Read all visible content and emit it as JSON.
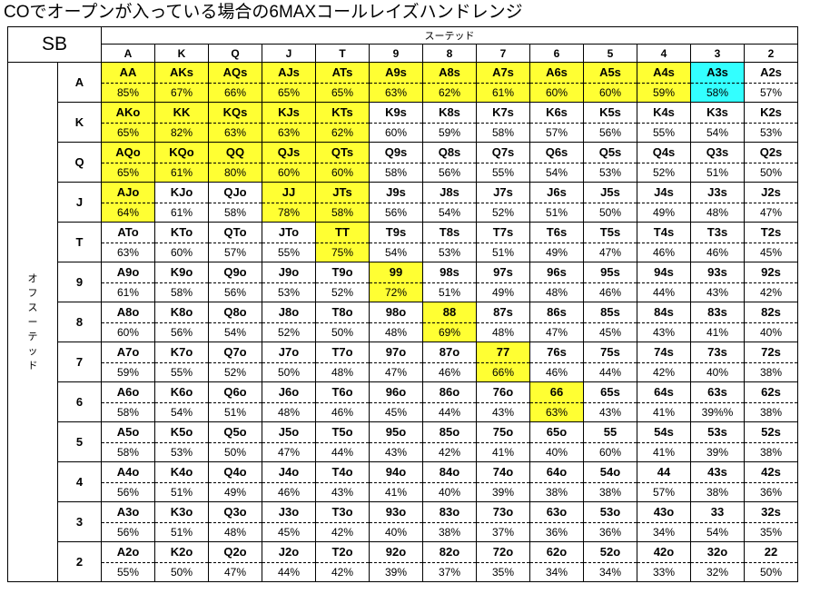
{
  "title": "COでオープンが入っている場合の6MAXコールレイズハンドレンジ",
  "position": "SB",
  "suited_label": "スーテッド",
  "offsuit_label": [
    "オ",
    "フ",
    "ス",
    "ー",
    "テ",
    "ッ",
    "ド"
  ],
  "ranks": [
    "A",
    "K",
    "Q",
    "J",
    "T",
    "9",
    "8",
    "7",
    "6",
    "5",
    "4",
    "3",
    "2"
  ],
  "colors": {
    "highlight": "#ffff33",
    "highlight_alt": "#33ffff"
  },
  "rows": [
    {
      "rank": "A",
      "cells": [
        {
          "hand": "AA",
          "pct": "85%",
          "hl": "yellow"
        },
        {
          "hand": "AKs",
          "pct": "67%",
          "hl": "yellow"
        },
        {
          "hand": "AQs",
          "pct": "66%",
          "hl": "yellow"
        },
        {
          "hand": "AJs",
          "pct": "65%",
          "hl": "yellow"
        },
        {
          "hand": "ATs",
          "pct": "65%",
          "hl": "yellow"
        },
        {
          "hand": "A9s",
          "pct": "63%",
          "hl": "yellow"
        },
        {
          "hand": "A8s",
          "pct": "62%",
          "hl": "yellow"
        },
        {
          "hand": "A7s",
          "pct": "61%",
          "hl": "yellow"
        },
        {
          "hand": "A6s",
          "pct": "60%",
          "hl": "yellow"
        },
        {
          "hand": "A5s",
          "pct": "60%",
          "hl": "yellow"
        },
        {
          "hand": "A4s",
          "pct": "59%",
          "hl": "yellow"
        },
        {
          "hand": "A3s",
          "pct": "58%",
          "hl": "cyan"
        },
        {
          "hand": "A2s",
          "pct": "57%",
          "hl": ""
        }
      ]
    },
    {
      "rank": "K",
      "cells": [
        {
          "hand": "AKo",
          "pct": "65%",
          "hl": "yellow"
        },
        {
          "hand": "KK",
          "pct": "82%",
          "hl": "yellow"
        },
        {
          "hand": "KQs",
          "pct": "63%",
          "hl": "yellow"
        },
        {
          "hand": "KJs",
          "pct": "63%",
          "hl": "yellow"
        },
        {
          "hand": "KTs",
          "pct": "62%",
          "hl": "yellow"
        },
        {
          "hand": "K9s",
          "pct": "60%",
          "hl": ""
        },
        {
          "hand": "K8s",
          "pct": "59%",
          "hl": ""
        },
        {
          "hand": "K7s",
          "pct": "58%",
          "hl": ""
        },
        {
          "hand": "K6s",
          "pct": "57%",
          "hl": ""
        },
        {
          "hand": "K5s",
          "pct": "56%",
          "hl": ""
        },
        {
          "hand": "K4s",
          "pct": "55%",
          "hl": ""
        },
        {
          "hand": "K3s",
          "pct": "54%",
          "hl": ""
        },
        {
          "hand": "K2s",
          "pct": "53%",
          "hl": ""
        }
      ]
    },
    {
      "rank": "Q",
      "cells": [
        {
          "hand": "AQo",
          "pct": "65%",
          "hl": "yellow"
        },
        {
          "hand": "KQo",
          "pct": "61%",
          "hl": "yellow"
        },
        {
          "hand": "QQ",
          "pct": "80%",
          "hl": "yellow"
        },
        {
          "hand": "QJs",
          "pct": "60%",
          "hl": "yellow"
        },
        {
          "hand": "QTs",
          "pct": "60%",
          "hl": "yellow"
        },
        {
          "hand": "Q9s",
          "pct": "58%",
          "hl": ""
        },
        {
          "hand": "Q8s",
          "pct": "56%",
          "hl": ""
        },
        {
          "hand": "Q7s",
          "pct": "55%",
          "hl": ""
        },
        {
          "hand": "Q6s",
          "pct": "54%",
          "hl": ""
        },
        {
          "hand": "Q5s",
          "pct": "53%",
          "hl": ""
        },
        {
          "hand": "Q4s",
          "pct": "52%",
          "hl": ""
        },
        {
          "hand": "Q3s",
          "pct": "51%",
          "hl": ""
        },
        {
          "hand": "Q2s",
          "pct": "50%",
          "hl": ""
        }
      ]
    },
    {
      "rank": "J",
      "cells": [
        {
          "hand": "AJo",
          "pct": "64%",
          "hl": "yellow"
        },
        {
          "hand": "KJo",
          "pct": "61%",
          "hl": ""
        },
        {
          "hand": "QJo",
          "pct": "58%",
          "hl": ""
        },
        {
          "hand": "JJ",
          "pct": "78%",
          "hl": "yellow"
        },
        {
          "hand": "JTs",
          "pct": "58%",
          "hl": "yellow"
        },
        {
          "hand": "J9s",
          "pct": "56%",
          "hl": ""
        },
        {
          "hand": "J8s",
          "pct": "54%",
          "hl": ""
        },
        {
          "hand": "J7s",
          "pct": "52%",
          "hl": ""
        },
        {
          "hand": "J6s",
          "pct": "51%",
          "hl": ""
        },
        {
          "hand": "J5s",
          "pct": "50%",
          "hl": ""
        },
        {
          "hand": "J4s",
          "pct": "49%",
          "hl": ""
        },
        {
          "hand": "J3s",
          "pct": "48%",
          "hl": ""
        },
        {
          "hand": "J2s",
          "pct": "47%",
          "hl": ""
        }
      ]
    },
    {
      "rank": "T",
      "cells": [
        {
          "hand": "ATo",
          "pct": "63%",
          "hl": ""
        },
        {
          "hand": "KTo",
          "pct": "60%",
          "hl": ""
        },
        {
          "hand": "QTo",
          "pct": "57%",
          "hl": ""
        },
        {
          "hand": "JTo",
          "pct": "55%",
          "hl": ""
        },
        {
          "hand": "TT",
          "pct": "75%",
          "hl": "yellow"
        },
        {
          "hand": "T9s",
          "pct": "54%",
          "hl": ""
        },
        {
          "hand": "T8s",
          "pct": "53%",
          "hl": ""
        },
        {
          "hand": "T7s",
          "pct": "51%",
          "hl": ""
        },
        {
          "hand": "T6s",
          "pct": "49%",
          "hl": ""
        },
        {
          "hand": "T5s",
          "pct": "47%",
          "hl": ""
        },
        {
          "hand": "T4s",
          "pct": "46%",
          "hl": ""
        },
        {
          "hand": "T3s",
          "pct": "46%",
          "hl": ""
        },
        {
          "hand": "T2s",
          "pct": "45%",
          "hl": ""
        }
      ]
    },
    {
      "rank": "9",
      "cells": [
        {
          "hand": "A9o",
          "pct": "61%",
          "hl": ""
        },
        {
          "hand": "K9o",
          "pct": "58%",
          "hl": ""
        },
        {
          "hand": "Q9o",
          "pct": "56%",
          "hl": ""
        },
        {
          "hand": "J9o",
          "pct": "53%",
          "hl": ""
        },
        {
          "hand": "T9o",
          "pct": "52%",
          "hl": ""
        },
        {
          "hand": "99",
          "pct": "72%",
          "hl": "yellow"
        },
        {
          "hand": "98s",
          "pct": "51%",
          "hl": ""
        },
        {
          "hand": "97s",
          "pct": "49%",
          "hl": ""
        },
        {
          "hand": "96s",
          "pct": "48%",
          "hl": ""
        },
        {
          "hand": "95s",
          "pct": "46%",
          "hl": ""
        },
        {
          "hand": "94s",
          "pct": "44%",
          "hl": ""
        },
        {
          "hand": "93s",
          "pct": "43%",
          "hl": ""
        },
        {
          "hand": "92s",
          "pct": "42%",
          "hl": ""
        }
      ]
    },
    {
      "rank": "8",
      "cells": [
        {
          "hand": "A8o",
          "pct": "60%",
          "hl": ""
        },
        {
          "hand": "K8o",
          "pct": "56%",
          "hl": ""
        },
        {
          "hand": "Q8o",
          "pct": "54%",
          "hl": ""
        },
        {
          "hand": "J8o",
          "pct": "52%",
          "hl": ""
        },
        {
          "hand": "T8o",
          "pct": "50%",
          "hl": ""
        },
        {
          "hand": "98o",
          "pct": "48%",
          "hl": ""
        },
        {
          "hand": "88",
          "pct": "69%",
          "hl": "yellow"
        },
        {
          "hand": "87s",
          "pct": "48%",
          "hl": ""
        },
        {
          "hand": "86s",
          "pct": "47%",
          "hl": ""
        },
        {
          "hand": "85s",
          "pct": "45%",
          "hl": ""
        },
        {
          "hand": "84s",
          "pct": "43%",
          "hl": ""
        },
        {
          "hand": "83s",
          "pct": "41%",
          "hl": ""
        },
        {
          "hand": "82s",
          "pct": "40%",
          "hl": ""
        }
      ]
    },
    {
      "rank": "7",
      "cells": [
        {
          "hand": "A7o",
          "pct": "59%",
          "hl": ""
        },
        {
          "hand": "K7o",
          "pct": "55%",
          "hl": ""
        },
        {
          "hand": "Q7o",
          "pct": "52%",
          "hl": ""
        },
        {
          "hand": "J7o",
          "pct": "50%",
          "hl": ""
        },
        {
          "hand": "T7o",
          "pct": "48%",
          "hl": ""
        },
        {
          "hand": "97o",
          "pct": "47%",
          "hl": ""
        },
        {
          "hand": "87o",
          "pct": "46%",
          "hl": ""
        },
        {
          "hand": "77",
          "pct": "66%",
          "hl": "yellow"
        },
        {
          "hand": "76s",
          "pct": "46%",
          "hl": ""
        },
        {
          "hand": "75s",
          "pct": "44%",
          "hl": ""
        },
        {
          "hand": "74s",
          "pct": "42%",
          "hl": ""
        },
        {
          "hand": "73s",
          "pct": "40%",
          "hl": ""
        },
        {
          "hand": "72s",
          "pct": "38%",
          "hl": ""
        }
      ]
    },
    {
      "rank": "6",
      "cells": [
        {
          "hand": "A6o",
          "pct": "58%",
          "hl": ""
        },
        {
          "hand": "K6o",
          "pct": "54%",
          "hl": ""
        },
        {
          "hand": "Q6o",
          "pct": "51%",
          "hl": ""
        },
        {
          "hand": "J6o",
          "pct": "48%",
          "hl": ""
        },
        {
          "hand": "T6o",
          "pct": "46%",
          "hl": ""
        },
        {
          "hand": "96o",
          "pct": "45%",
          "hl": ""
        },
        {
          "hand": "86o",
          "pct": "44%",
          "hl": ""
        },
        {
          "hand": "76o",
          "pct": "43%",
          "hl": ""
        },
        {
          "hand": "66",
          "pct": "63%",
          "hl": "yellow"
        },
        {
          "hand": "65s",
          "pct": "43%",
          "hl": ""
        },
        {
          "hand": "64s",
          "pct": "41%",
          "hl": ""
        },
        {
          "hand": "63s",
          "pct": "39%%",
          "hl": ""
        },
        {
          "hand": "62s",
          "pct": "38%",
          "hl": ""
        }
      ]
    },
    {
      "rank": "5",
      "cells": [
        {
          "hand": "A5o",
          "pct": "58%",
          "hl": ""
        },
        {
          "hand": "K5o",
          "pct": "53%",
          "hl": ""
        },
        {
          "hand": "Q5o",
          "pct": "50%",
          "hl": ""
        },
        {
          "hand": "J5o",
          "pct": "47%",
          "hl": ""
        },
        {
          "hand": "T5o",
          "pct": "44%",
          "hl": ""
        },
        {
          "hand": "95o",
          "pct": "43%",
          "hl": ""
        },
        {
          "hand": "85o",
          "pct": "42%",
          "hl": ""
        },
        {
          "hand": "75o",
          "pct": "41%",
          "hl": ""
        },
        {
          "hand": "65o",
          "pct": "40%",
          "hl": ""
        },
        {
          "hand": "55",
          "pct": "60%",
          "hl": ""
        },
        {
          "hand": "54s",
          "pct": "41%",
          "hl": ""
        },
        {
          "hand": "53s",
          "pct": "39%",
          "hl": ""
        },
        {
          "hand": "52s",
          "pct": "38%",
          "hl": ""
        }
      ]
    },
    {
      "rank": "4",
      "cells": [
        {
          "hand": "A4o",
          "pct": "56%",
          "hl": ""
        },
        {
          "hand": "K4o",
          "pct": "51%",
          "hl": ""
        },
        {
          "hand": "Q4o",
          "pct": "49%",
          "hl": ""
        },
        {
          "hand": "J4o",
          "pct": "46%",
          "hl": ""
        },
        {
          "hand": "T4o",
          "pct": "43%",
          "hl": ""
        },
        {
          "hand": "94o",
          "pct": "41%",
          "hl": ""
        },
        {
          "hand": "84o",
          "pct": "40%",
          "hl": ""
        },
        {
          "hand": "74o",
          "pct": "39%",
          "hl": ""
        },
        {
          "hand": "64o",
          "pct": "38%",
          "hl": ""
        },
        {
          "hand": "54o",
          "pct": "38%",
          "hl": ""
        },
        {
          "hand": "44",
          "pct": "57%",
          "hl": ""
        },
        {
          "hand": "43s",
          "pct": "38%",
          "hl": ""
        },
        {
          "hand": "42s",
          "pct": "36%",
          "hl": ""
        }
      ]
    },
    {
      "rank": "3",
      "cells": [
        {
          "hand": "A3o",
          "pct": "56%",
          "hl": ""
        },
        {
          "hand": "K3o",
          "pct": "51%",
          "hl": ""
        },
        {
          "hand": "Q3o",
          "pct": "48%",
          "hl": ""
        },
        {
          "hand": "J3o",
          "pct": "45%",
          "hl": ""
        },
        {
          "hand": "T3o",
          "pct": "42%",
          "hl": ""
        },
        {
          "hand": "93o",
          "pct": "40%",
          "hl": ""
        },
        {
          "hand": "83o",
          "pct": "38%",
          "hl": ""
        },
        {
          "hand": "73o",
          "pct": "37%",
          "hl": ""
        },
        {
          "hand": "63o",
          "pct": "36%",
          "hl": ""
        },
        {
          "hand": "53o",
          "pct": "36%",
          "hl": ""
        },
        {
          "hand": "43o",
          "pct": "34%",
          "hl": ""
        },
        {
          "hand": "33",
          "pct": "54%",
          "hl": ""
        },
        {
          "hand": "32s",
          "pct": "35%",
          "hl": ""
        }
      ]
    },
    {
      "rank": "2",
      "cells": [
        {
          "hand": "A2o",
          "pct": "55%",
          "hl": ""
        },
        {
          "hand": "K2o",
          "pct": "50%",
          "hl": ""
        },
        {
          "hand": "Q2o",
          "pct": "47%",
          "hl": ""
        },
        {
          "hand": "J2o",
          "pct": "44%",
          "hl": ""
        },
        {
          "hand": "T2o",
          "pct": "42%",
          "hl": ""
        },
        {
          "hand": "92o",
          "pct": "39%",
          "hl": ""
        },
        {
          "hand": "82o",
          "pct": "37%",
          "hl": ""
        },
        {
          "hand": "72o",
          "pct": "35%",
          "hl": ""
        },
        {
          "hand": "62o",
          "pct": "34%",
          "hl": ""
        },
        {
          "hand": "52o",
          "pct": "34%",
          "hl": ""
        },
        {
          "hand": "42o",
          "pct": "33%",
          "hl": ""
        },
        {
          "hand": "32o",
          "pct": "32%",
          "hl": ""
        },
        {
          "hand": "22",
          "pct": "50%",
          "hl": ""
        }
      ]
    }
  ]
}
